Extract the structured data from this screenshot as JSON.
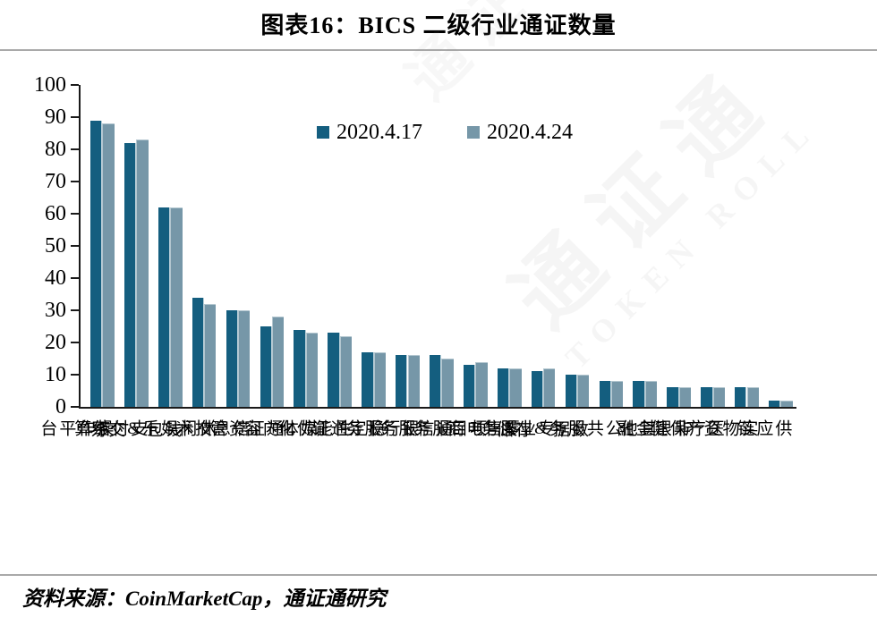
{
  "title": "图表16：BICS 二级行业通证数量",
  "source": "资料来源：CoinMarketCap，通证通研究",
  "watermark": {
    "cn": "通证通",
    "en": "TOKEN ROLL"
  },
  "colors": {
    "series1": "#145E7F",
    "series2": "#7697A8",
    "axis": "#1a1a1a",
    "rule": "#a9a9a9"
  },
  "chart_data": {
    "type": "bar",
    "title": "图表16：BICS 二级行业通证数量",
    "categories": [
      "操作平台",
      "支付结算",
      "钱包&交易",
      "休闲娱乐",
      "信息技术",
      "通证资管",
      "媒体内容",
      "性能优化",
      "稳定通证",
      "银行服务",
      "通信服务",
      "项目服务",
      "零售电商",
      "专业服务",
      "数据&存储",
      "公共服务",
      "其他",
      "非银金融",
      "医疗保健",
      "实物资产",
      "供应链"
    ],
    "series": [
      {
        "name": "2020.4.17",
        "color": "#145E7F",
        "values": [
          89,
          82,
          62,
          34,
          30,
          25,
          24,
          23,
          17,
          16,
          16,
          13,
          12,
          11,
          10,
          8,
          8,
          6,
          6,
          6,
          2
        ]
      },
      {
        "name": "2020.4.24",
        "color": "#7697A8",
        "values": [
          88,
          83,
          62,
          32,
          30,
          28,
          23,
          22,
          17,
          16,
          15,
          14,
          12,
          12,
          10,
          8,
          8,
          6,
          6,
          6,
          2
        ]
      }
    ],
    "xlabel": "",
    "ylabel": "",
    "ylim": [
      0,
      100
    ],
    "yticks": [
      0,
      10,
      20,
      30,
      40,
      50,
      60,
      70,
      80,
      90,
      100
    ],
    "grid": false,
    "legend_position": "top-center-inside"
  }
}
